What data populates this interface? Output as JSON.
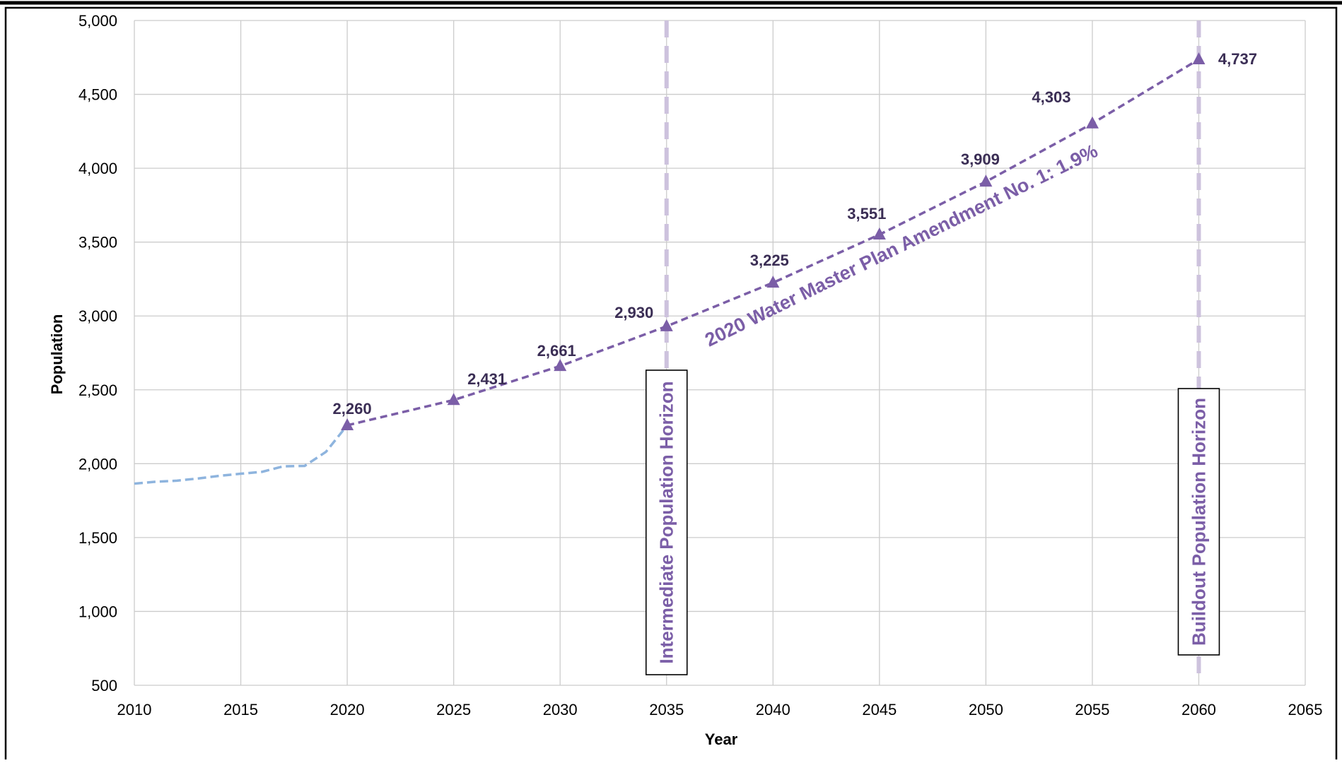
{
  "chart_data": {
    "type": "line",
    "xlabel": "Year",
    "ylabel": "Population",
    "xlim": [
      2010,
      2065
    ],
    "ylim": [
      500,
      5000
    ],
    "x_ticks": [
      2010,
      2015,
      2020,
      2025,
      2030,
      2035,
      2040,
      2045,
      2050,
      2055,
      2060,
      2065
    ],
    "y_ticks": [
      500,
      1000,
      1500,
      2000,
      2500,
      3000,
      3500,
      4000,
      4500,
      5000
    ],
    "grid": true,
    "colors": {
      "historical": "#8eb4de",
      "projection": "#7b5ea7",
      "horizon_line": "#cdc2dd",
      "grid": "#cccccc"
    },
    "series": [
      {
        "style": "dashed",
        "x": [
          2010,
          2011,
          2012,
          2013,
          2014,
          2015,
          2016,
          2017,
          2018,
          2019,
          2020
        ],
        "y": [
          1865,
          1878,
          1885,
          1900,
          1918,
          1932,
          1945,
          1982,
          1985,
          2080,
          2260
        ]
      },
      {
        "name": "2020 Water Master Plan Amendment No. 1: 1.9%",
        "style": "dashed",
        "marker": "triangle",
        "x": [
          2020,
          2025,
          2030,
          2035,
          2040,
          2045,
          2050,
          2055,
          2060
        ],
        "y": [
          2260,
          2431,
          2661,
          2930,
          3225,
          3551,
          3909,
          4303,
          4737
        ],
        "labels": [
          "2,260",
          "2,431",
          "2,661",
          "2,930",
          "3,225",
          "3,551",
          "3,909",
          "4,303",
          "4,737"
        ]
      }
    ],
    "annotations": [
      {
        "x": 2035,
        "text": "Intermediate Population Horizon"
      },
      {
        "x": 2060,
        "text": "Buildout Population Horizon"
      }
    ]
  }
}
